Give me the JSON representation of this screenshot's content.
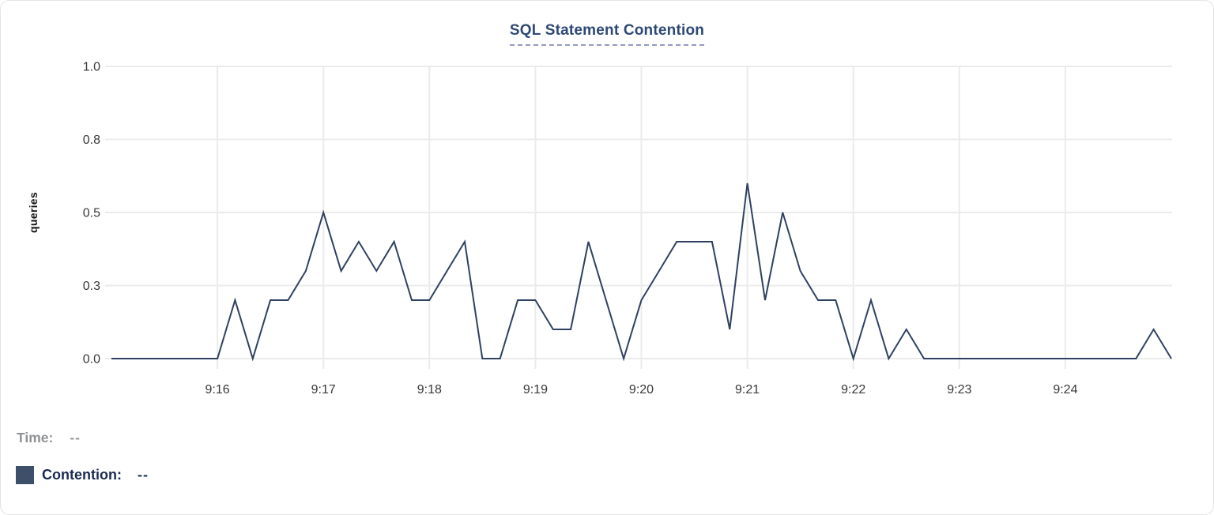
{
  "card": {
    "title": "SQL Statement Contention"
  },
  "tooltip_readout": {
    "time_label": "Time:",
    "time_value": "--",
    "series_label": "Contention:",
    "series_value": "--"
  },
  "colors": {
    "line": "#2e4160",
    "legend_swatch": "#3e4f6a",
    "title_text": "#2e4875",
    "title_underline": "#9299c7",
    "grid": "#ebebeb",
    "axis_text": "#383838"
  },
  "chart_data": {
    "type": "line",
    "title": "SQL Statement Contention",
    "xlabel": "",
    "ylabel": "queries",
    "grid": true,
    "legend_position": "none",
    "ylim": [
      0,
      1
    ],
    "xlim_seconds": [
      0,
      600
    ],
    "start_time": "9:15:00",
    "interval_seconds": 10,
    "x_ticks": [
      {
        "sec": 60,
        "label": "9:16"
      },
      {
        "sec": 120,
        "label": "9:17"
      },
      {
        "sec": 180,
        "label": "9:18"
      },
      {
        "sec": 240,
        "label": "9:19"
      },
      {
        "sec": 300,
        "label": "9:20"
      },
      {
        "sec": 360,
        "label": "9:21"
      },
      {
        "sec": 420,
        "label": "9:22"
      },
      {
        "sec": 480,
        "label": "9:23"
      },
      {
        "sec": 540,
        "label": "9:24"
      }
    ],
    "y_ticks": [
      {
        "value": 0,
        "label": "0.0"
      },
      {
        "value": 0.25,
        "label": "0.3"
      },
      {
        "value": 0.5,
        "label": "0.5"
      },
      {
        "value": 0.75,
        "label": "0.8"
      },
      {
        "value": 1.0,
        "label": "1.0"
      }
    ],
    "series": [
      {
        "name": "Contention",
        "color": "#2e4160",
        "values": [
          0,
          0,
          0,
          0,
          0,
          0,
          0,
          0.2,
          0,
          0.2,
          0.2,
          0.3,
          0.5,
          0.3,
          0.4,
          0.3,
          0.4,
          0.2,
          0.2,
          0.3,
          0.4,
          0,
          0,
          0.2,
          0.2,
          0.1,
          0.1,
          0.4,
          0.2,
          0,
          0.2,
          0.3,
          0.4,
          0.4,
          0.4,
          0.1,
          0.6,
          0.2,
          0.5,
          0.3,
          0.2,
          0.2,
          0,
          0.2,
          0,
          0.1,
          0,
          0,
          0,
          0,
          0,
          0,
          0,
          0,
          0,
          0,
          0,
          0,
          0,
          0.1,
          0
        ]
      }
    ]
  }
}
